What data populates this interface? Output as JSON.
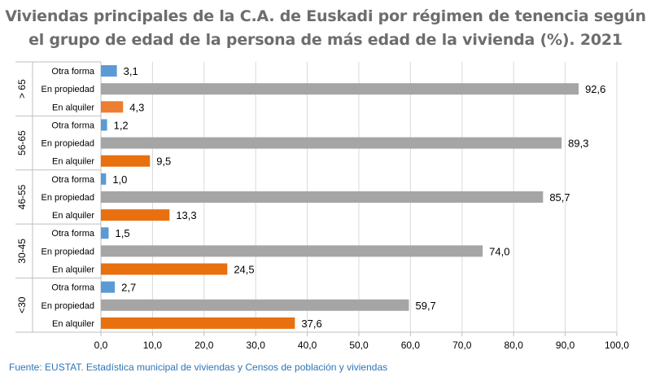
{
  "title_line1": "Viviendas principales de la C.A. de Euskadi por régimen de tenencia según",
  "title_line2": "el grupo de edad de la persona de más edad de la vivienda (%). 2021",
  "source": "Fuente: EUSTAT. Estadística municipal de viviendas y Censos de población y viviendas",
  "colors": {
    "Otra forma": "#5b9bd5",
    "En propiedad": "#a5a5a5",
    "En alquiler": "#e8700f",
    "En alquiler (> 65)": "#ed7d31"
  },
  "chart_data": {
    "type": "bar",
    "orientation": "horizontal",
    "title": "Viviendas principales de la C.A. de Euskadi por régimen de tenencia según el grupo de edad de la persona de más edad de la vivienda (%). 2021",
    "xlim": [
      0,
      100
    ],
    "xticks": [
      "0,0",
      "10,0",
      "20,0",
      "30,0",
      "40,0",
      "50,0",
      "60,0",
      "70,0",
      "80,0",
      "90,0",
      "100,0"
    ],
    "grid": true,
    "groups": [
      {
        "label": "> 65",
        "bars": [
          {
            "category": "Otra forma",
            "value": 3.1,
            "label": "3,1"
          },
          {
            "category": "En propiedad",
            "value": 92.6,
            "label": "92,6"
          },
          {
            "category": "En alquiler",
            "value": 4.3,
            "label": "4,3"
          }
        ]
      },
      {
        "label": "56-65",
        "bars": [
          {
            "category": "Otra forma",
            "value": 1.2,
            "label": "1,2"
          },
          {
            "category": "En propiedad",
            "value": 89.3,
            "label": "89,3"
          },
          {
            "category": "En alquiler",
            "value": 9.5,
            "label": "9,5"
          }
        ]
      },
      {
        "label": "46-55",
        "bars": [
          {
            "category": "Otra forma",
            "value": 1.0,
            "label": "1,0"
          },
          {
            "category": "En propiedad",
            "value": 85.7,
            "label": "85,7"
          },
          {
            "category": "En alquiler",
            "value": 13.3,
            "label": "13,3"
          }
        ]
      },
      {
        "label": "30-45",
        "bars": [
          {
            "category": "Otra forma",
            "value": 1.5,
            "label": "1,5"
          },
          {
            "category": "En propiedad",
            "value": 74.0,
            "label": "74,0"
          },
          {
            "category": "En alquiler",
            "value": 24.5,
            "label": "24,5"
          }
        ]
      },
      {
        "label": "<30",
        "bars": [
          {
            "category": "Otra forma",
            "value": 2.7,
            "label": "2,7"
          },
          {
            "category": "En propiedad",
            "value": 59.7,
            "label": "59,7"
          },
          {
            "category": "En alquiler",
            "value": 37.6,
            "label": "37,6"
          }
        ]
      }
    ]
  }
}
